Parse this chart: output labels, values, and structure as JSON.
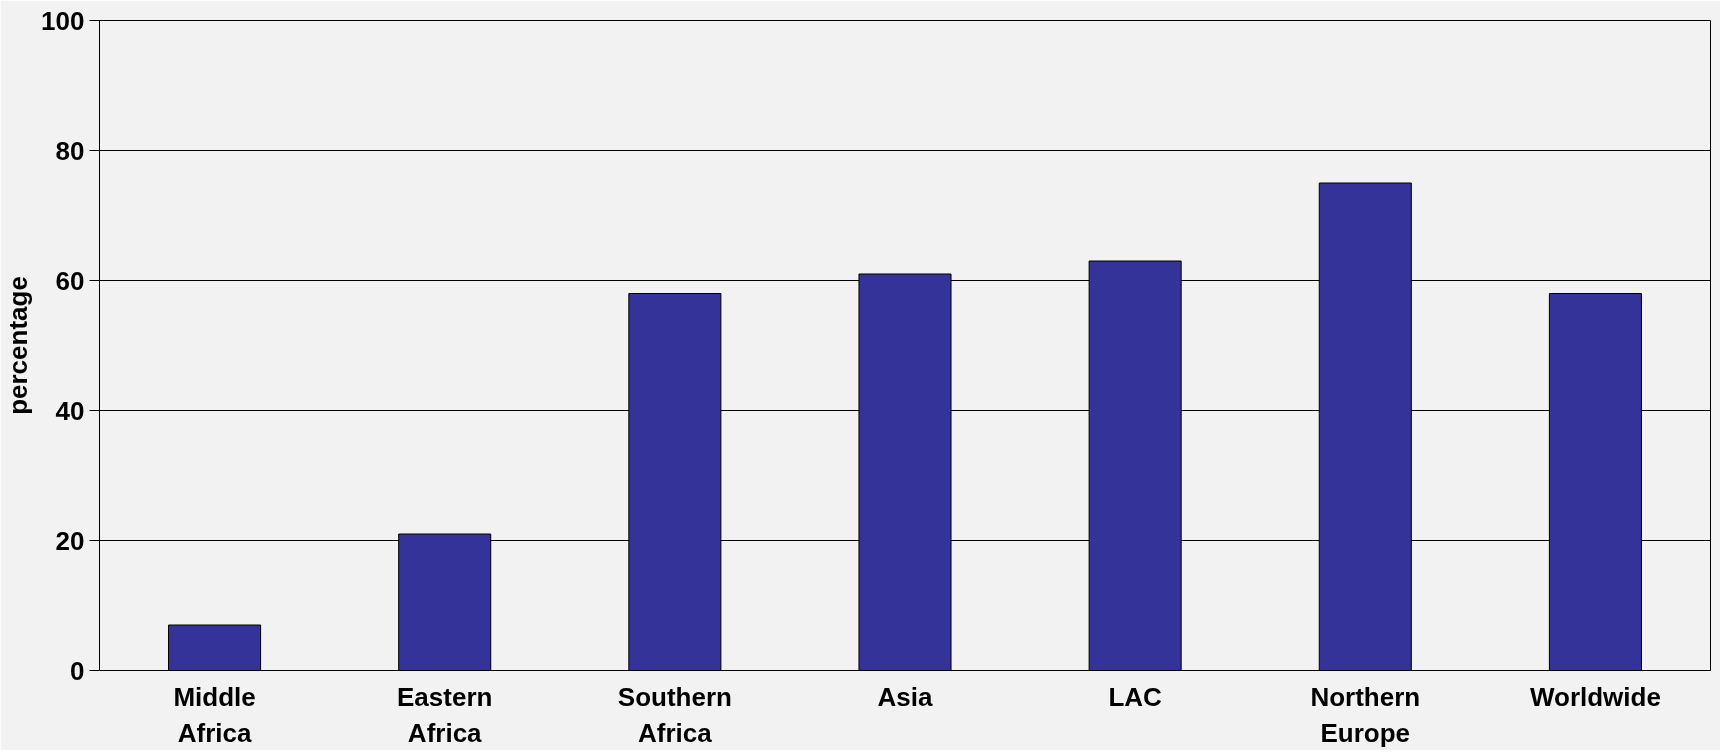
{
  "chart_data": {
    "type": "bar",
    "ylabel": "percentage",
    "categories": [
      "Middle Africa",
      "Eastern Africa",
      "Southern Africa",
      "Asia",
      "LAC",
      "Northern Europe",
      "Worldwide"
    ],
    "values": [
      7,
      21,
      58,
      61,
      63,
      75,
      58
    ],
    "color": "#333399",
    "ylim": [
      0,
      100
    ],
    "yticks": [
      0,
      20,
      40,
      60,
      80,
      100
    ],
    "grid": "y"
  }
}
